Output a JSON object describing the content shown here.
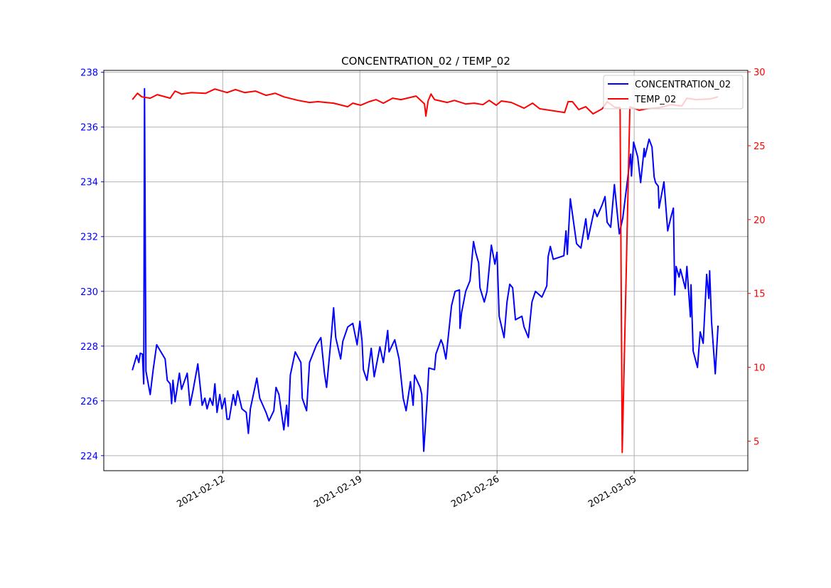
{
  "chart_data": {
    "type": "line",
    "title": "CONCENTRATION_02 / TEMP_02",
    "x_unit": "days since 2021-02-12",
    "x_origin": "2021-02-12",
    "xticks": [
      {
        "d": 0,
        "label": "2021-02-12"
      },
      {
        "d": 7,
        "label": "2021-02-19"
      },
      {
        "d": 14,
        "label": "2021-02-26"
      },
      {
        "d": 21,
        "label": "2021-03-05"
      }
    ],
    "grid": true,
    "legend_position": "top-right",
    "left_axis": {
      "ylim": [
        223.45,
        238.07
      ],
      "ticks": [
        224,
        226,
        228,
        230,
        232,
        234,
        236,
        238
      ],
      "color": "#0000ff"
    },
    "right_axis": {
      "ylim": [
        3,
        30.1
      ],
      "ticks": [
        5,
        10,
        15,
        20,
        25,
        30
      ],
      "color": "#ff0000"
    },
    "series": [
      {
        "name": "CONCENTRATION_02",
        "axis": "left",
        "color": "#0000ff",
        "x": [
          -4.61,
          -4.39,
          -4.28,
          -4.21,
          -4.1,
          -4.03,
          -3.99,
          -3.92,
          -3.7,
          -3.55,
          -3.37,
          -2.94,
          -2.83,
          -2.68,
          -2.61,
          -2.54,
          -2.43,
          -2.21,
          -2.1,
          -1.81,
          -1.67,
          -1.52,
          -1.27,
          -1.05,
          -0.91,
          -0.8,
          -0.65,
          -0.51,
          -0.4,
          -0.29,
          -0.15,
          -0.04,
          0.11,
          0.22,
          0.33,
          0.54,
          0.65,
          0.76,
          0.98,
          1.2,
          1.31,
          1.41,
          1.74,
          1.89,
          2.21,
          2.36,
          2.61,
          2.72,
          2.87,
          3.12,
          3.26,
          3.34,
          3.45,
          3.7,
          3.99,
          4.06,
          4.28,
          4.43,
          4.79,
          5.01,
          5.19,
          5.3,
          5.55,
          5.66,
          5.77,
          6.02,
          6.13,
          6.38,
          6.64,
          6.86,
          7.0,
          7.11,
          7.18,
          7.36,
          7.58,
          7.73,
          8.02,
          8.2,
          8.42,
          8.49,
          8.78,
          9.0,
          9.21,
          9.36,
          9.58,
          9.72,
          9.79,
          10.08,
          10.16,
          10.26,
          10.45,
          10.52,
          10.81,
          10.88,
          11.14,
          11.24,
          11.39,
          11.68,
          11.86,
          12.08,
          12.11,
          12.19,
          12.4,
          12.62,
          12.8,
          12.91,
          13.06,
          13.13,
          13.35,
          13.49,
          13.71,
          13.89,
          14.0,
          14.11,
          14.36,
          14.51,
          14.65,
          14.8,
          14.94,
          15.27,
          15.38,
          15.6,
          15.78,
          15.96,
          16.29,
          16.54,
          16.61,
          16.72,
          16.87,
          17.41,
          17.52,
          17.59,
          17.74,
          18.06,
          18.28,
          18.53,
          18.64,
          18.97,
          19.11,
          19.37,
          19.51,
          19.62,
          19.8,
          19.99,
          20.24,
          20.42,
          20.82,
          20.86,
          20.97,
          21.18,
          21.33,
          21.51,
          21.55,
          21.76,
          21.91,
          22.02,
          22.09,
          22.23,
          22.27,
          22.52,
          22.71,
          22.89,
          23.0,
          23.07,
          23.14,
          23.29,
          23.36,
          23.61,
          23.69,
          23.87,
          23.9,
          24.01,
          24.23,
          24.37,
          24.52,
          24.7,
          24.81,
          24.85,
          24.95,
          25.14,
          25.28
        ],
        "y": [
          227.12,
          227.66,
          227.4,
          227.74,
          227.71,
          226.62,
          237.4,
          227.09,
          226.23,
          227.14,
          228.05,
          227.53,
          226.75,
          226.62,
          225.9,
          226.75,
          225.97,
          227.01,
          226.42,
          227.01,
          225.84,
          226.36,
          227.35,
          225.84,
          226.1,
          225.71,
          226.1,
          225.84,
          226.62,
          225.58,
          226.23,
          225.71,
          226.1,
          225.33,
          225.33,
          226.23,
          225.84,
          226.36,
          225.71,
          225.58,
          224.81,
          225.71,
          226.83,
          226.1,
          225.58,
          225.27,
          225.64,
          226.49,
          226.23,
          224.94,
          225.84,
          225.07,
          226.94,
          227.79,
          227.4,
          226.1,
          225.64,
          227.4,
          228.05,
          228.31,
          227.01,
          226.49,
          228.44,
          229.4,
          228.31,
          227.53,
          228.18,
          228.7,
          228.83,
          228.05,
          228.91,
          228.18,
          227.14,
          226.75,
          227.92,
          226.88,
          227.97,
          227.4,
          228.57,
          227.79,
          228.23,
          227.53,
          226.1,
          225.64,
          226.7,
          225.84,
          226.94,
          226.49,
          226.23,
          224.16,
          226.23,
          227.2,
          227.14,
          227.71,
          228.23,
          228.05,
          227.53,
          229.48,
          230.0,
          230.05,
          228.65,
          229.22,
          230.0,
          230.39,
          231.82,
          231.43,
          231.04,
          230.13,
          229.61,
          230.0,
          231.69,
          230.99,
          231.43,
          229.09,
          228.31,
          229.61,
          230.26,
          230.13,
          228.96,
          229.09,
          228.7,
          228.31,
          229.61,
          230.0,
          229.79,
          230.2,
          231.27,
          231.64,
          231.17,
          231.3,
          232.21,
          231.35,
          233.38,
          231.74,
          231.58,
          232.65,
          231.9,
          232.99,
          232.73,
          233.17,
          233.46,
          232.52,
          232.34,
          233.9,
          232.1,
          232.68,
          235.01,
          234.21,
          235.45,
          234.91,
          233.97,
          235.22,
          234.91,
          235.56,
          235.27,
          234.18,
          233.97,
          233.84,
          233.04,
          234.0,
          232.21,
          232.75,
          233.04,
          229.87,
          230.91,
          230.52,
          230.81,
          230.1,
          230.91,
          229.07,
          230.24,
          227.82,
          227.22,
          228.52,
          228.1,
          230.62,
          229.74,
          230.75,
          228.88,
          226.99,
          228.75
        ]
      },
      {
        "name": "TEMP_02",
        "axis": "right",
        "color": "#ff0000",
        "x": [
          -4.61,
          -4.35,
          -4.13,
          -3.7,
          -3.34,
          -2.68,
          -2.43,
          -2.1,
          -1.6,
          -0.87,
          -0.4,
          0.22,
          0.65,
          1.12,
          1.67,
          2.21,
          2.68,
          3.12,
          3.84,
          4.43,
          4.86,
          5.66,
          6.38,
          6.64,
          7.04,
          7.47,
          7.83,
          8.2,
          8.67,
          9.1,
          9.87,
          10.3,
          10.37,
          10.48,
          10.63,
          10.81,
          11.46,
          11.82,
          12.4,
          12.84,
          13.28,
          13.6,
          13.96,
          14.22,
          14.73,
          15.38,
          15.81,
          16.18,
          17.45,
          17.63,
          17.85,
          18.17,
          18.53,
          18.9,
          19.37,
          19.62,
          20.02,
          20.28,
          20.39,
          20.78,
          21.26,
          21.62,
          22.34,
          22.89,
          23.43,
          23.69,
          24.16,
          24.88,
          25.28
        ],
        "y": [
          28.12,
          28.55,
          28.31,
          28.22,
          28.46,
          28.22,
          28.7,
          28.5,
          28.6,
          28.55,
          28.84,
          28.6,
          28.8,
          28.6,
          28.7,
          28.41,
          28.55,
          28.31,
          28.07,
          27.93,
          27.98,
          27.88,
          27.64,
          27.88,
          27.74,
          27.98,
          28.12,
          27.88,
          28.22,
          28.12,
          28.36,
          27.83,
          27.01,
          28.03,
          28.5,
          28.12,
          27.93,
          28.07,
          27.83,
          27.88,
          27.78,
          28.07,
          27.74,
          28.03,
          27.93,
          27.54,
          27.88,
          27.5,
          27.25,
          27.98,
          27.98,
          27.45,
          27.64,
          27.16,
          27.5,
          27.98,
          27.59,
          27.59,
          4.23,
          27.64,
          27.4,
          27.5,
          27.59,
          27.78,
          27.69,
          28.22,
          28.12,
          28.17,
          28.31
        ]
      }
    ]
  }
}
